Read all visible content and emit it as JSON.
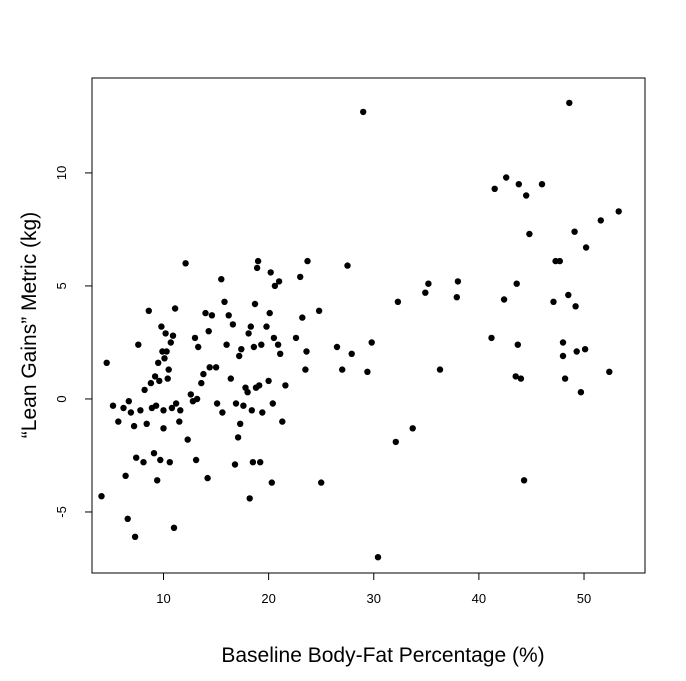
{
  "chart_data": {
    "type": "scatter",
    "title": "",
    "xlabel": "Baseline Body-Fat Percentage (%)",
    "ylabel": "“Lean Gains” Metric (kg)",
    "xlim": [
      3.2,
      55.8
    ],
    "ylim": [
      -7.7,
      14.2
    ],
    "x_ticks": [
      10,
      20,
      30,
      40,
      50
    ],
    "y_ticks": [
      -5,
      0,
      5,
      10
    ],
    "x_tick_labels": [
      "10",
      "20",
      "30",
      "40",
      "50"
    ],
    "y_tick_labels": [
      "-5",
      "0",
      "5",
      "10"
    ],
    "grid": false,
    "legend": "none",
    "marker_color": "#000000",
    "points": [
      [
        4.1,
        -4.3
      ],
      [
        4.6,
        1.6
      ],
      [
        5.2,
        -0.3
      ],
      [
        5.7,
        -1.0
      ],
      [
        6.2,
        -0.4
      ],
      [
        6.4,
        -3.4
      ],
      [
        6.6,
        -5.3
      ],
      [
        6.7,
        -0.1
      ],
      [
        6.9,
        -0.6
      ],
      [
        7.2,
        -1.2
      ],
      [
        7.3,
        -6.1
      ],
      [
        7.4,
        -2.6
      ],
      [
        7.6,
        2.4
      ],
      [
        7.8,
        -0.5
      ],
      [
        8.1,
        -2.8
      ],
      [
        8.2,
        0.4
      ],
      [
        8.4,
        -1.1
      ],
      [
        8.6,
        3.9
      ],
      [
        8.8,
        0.7
      ],
      [
        8.9,
        -0.4
      ],
      [
        9.1,
        -2.4
      ],
      [
        9.2,
        1.0
      ],
      [
        9.3,
        -0.3
      ],
      [
        9.4,
        -3.6
      ],
      [
        9.5,
        1.6
      ],
      [
        9.6,
        0.8
      ],
      [
        9.7,
        -2.7
      ],
      [
        9.8,
        3.2
      ],
      [
        9.9,
        2.1
      ],
      [
        10.0,
        -1.3
      ],
      [
        10.0,
        -0.5
      ],
      [
        10.1,
        1.8
      ],
      [
        10.2,
        2.9
      ],
      [
        10.3,
        2.1
      ],
      [
        10.4,
        0.9
      ],
      [
        10.5,
        1.3
      ],
      [
        10.6,
        -2.8
      ],
      [
        10.7,
        2.5
      ],
      [
        10.8,
        -0.4
      ],
      [
        10.9,
        2.8
      ],
      [
        11.0,
        -5.7
      ],
      [
        11.1,
        4.0
      ],
      [
        11.2,
        -0.2
      ],
      [
        11.5,
        -1.0
      ],
      [
        11.6,
        -0.5
      ],
      [
        12.1,
        6.0
      ],
      [
        12.3,
        -1.8
      ],
      [
        12.6,
        0.2
      ],
      [
        12.8,
        -0.1
      ],
      [
        13.0,
        2.7
      ],
      [
        13.1,
        -2.7
      ],
      [
        13.2,
        0.0
      ],
      [
        13.3,
        2.3
      ],
      [
        13.6,
        0.7
      ],
      [
        13.8,
        1.1
      ],
      [
        14.0,
        3.8
      ],
      [
        14.2,
        -3.5
      ],
      [
        14.3,
        3.0
      ],
      [
        14.4,
        1.4
      ],
      [
        14.6,
        3.7
      ],
      [
        15.0,
        1.4
      ],
      [
        15.1,
        -0.2
      ],
      [
        15.5,
        5.3
      ],
      [
        15.6,
        -0.6
      ],
      [
        15.8,
        4.3
      ],
      [
        16.0,
        2.4
      ],
      [
        16.2,
        3.7
      ],
      [
        16.4,
        0.9
      ],
      [
        16.6,
        3.3
      ],
      [
        16.8,
        -2.9
      ],
      [
        16.9,
        -0.2
      ],
      [
        17.1,
        -1.7
      ],
      [
        17.2,
        1.9
      ],
      [
        17.3,
        -1.1
      ],
      [
        17.4,
        2.2
      ],
      [
        17.6,
        -0.3
      ],
      [
        17.8,
        0.5
      ],
      [
        18.0,
        0.3
      ],
      [
        18.1,
        2.9
      ],
      [
        18.2,
        -4.4
      ],
      [
        18.3,
        3.2
      ],
      [
        18.4,
        -0.5
      ],
      [
        18.5,
        -2.8
      ],
      [
        18.6,
        2.3
      ],
      [
        18.7,
        4.2
      ],
      [
        18.8,
        0.5
      ],
      [
        18.9,
        5.8
      ],
      [
        19.0,
        6.1
      ],
      [
        19.1,
        0.6
      ],
      [
        19.2,
        -2.8
      ],
      [
        19.3,
        2.4
      ],
      [
        19.4,
        -0.6
      ],
      [
        19.8,
        3.2
      ],
      [
        20.0,
        0.8
      ],
      [
        20.1,
        3.8
      ],
      [
        20.2,
        5.6
      ],
      [
        20.3,
        -3.7
      ],
      [
        20.4,
        -0.2
      ],
      [
        20.5,
        2.7
      ],
      [
        20.6,
        5.0
      ],
      [
        20.9,
        2.4
      ],
      [
        21.0,
        5.2
      ],
      [
        21.1,
        2.0
      ],
      [
        21.3,
        -1.0
      ],
      [
        21.6,
        0.6
      ],
      [
        22.6,
        2.7
      ],
      [
        23.0,
        5.4
      ],
      [
        23.2,
        3.6
      ],
      [
        23.5,
        1.3
      ],
      [
        23.6,
        2.1
      ],
      [
        23.7,
        6.1
      ],
      [
        24.8,
        3.9
      ],
      [
        25.0,
        -3.7
      ],
      [
        26.5,
        2.3
      ],
      [
        27.0,
        1.3
      ],
      [
        27.5,
        5.9
      ],
      [
        27.9,
        2.0
      ],
      [
        29.0,
        12.7
      ],
      [
        29.4,
        1.2
      ],
      [
        29.8,
        2.5
      ],
      [
        30.4,
        -7.0
      ],
      [
        32.1,
        -1.9
      ],
      [
        32.3,
        4.3
      ],
      [
        33.7,
        -1.3
      ],
      [
        34.9,
        4.7
      ],
      [
        35.2,
        5.1
      ],
      [
        36.3,
        1.3
      ],
      [
        37.9,
        4.5
      ],
      [
        38.0,
        5.2
      ],
      [
        41.2,
        2.7
      ],
      [
        41.5,
        9.3
      ],
      [
        42.4,
        4.4
      ],
      [
        42.6,
        9.8
      ],
      [
        43.5,
        1.0
      ],
      [
        43.6,
        5.1
      ],
      [
        43.7,
        2.4
      ],
      [
        43.8,
        9.5
      ],
      [
        44.0,
        0.9
      ],
      [
        44.3,
        -3.6
      ],
      [
        44.5,
        9.0
      ],
      [
        44.8,
        7.3
      ],
      [
        46.0,
        9.5
      ],
      [
        47.1,
        4.3
      ],
      [
        47.3,
        6.1
      ],
      [
        47.7,
        6.1
      ],
      [
        48.0,
        2.5
      ],
      [
        48.0,
        1.9
      ],
      [
        48.2,
        0.9
      ],
      [
        48.5,
        4.6
      ],
      [
        48.6,
        13.1
      ],
      [
        49.1,
        7.4
      ],
      [
        49.2,
        4.1
      ],
      [
        49.3,
        2.1
      ],
      [
        49.7,
        0.3
      ],
      [
        50.1,
        2.2
      ],
      [
        50.2,
        6.7
      ],
      [
        51.6,
        7.9
      ],
      [
        52.4,
        1.2
      ],
      [
        53.3,
        8.3
      ]
    ]
  }
}
